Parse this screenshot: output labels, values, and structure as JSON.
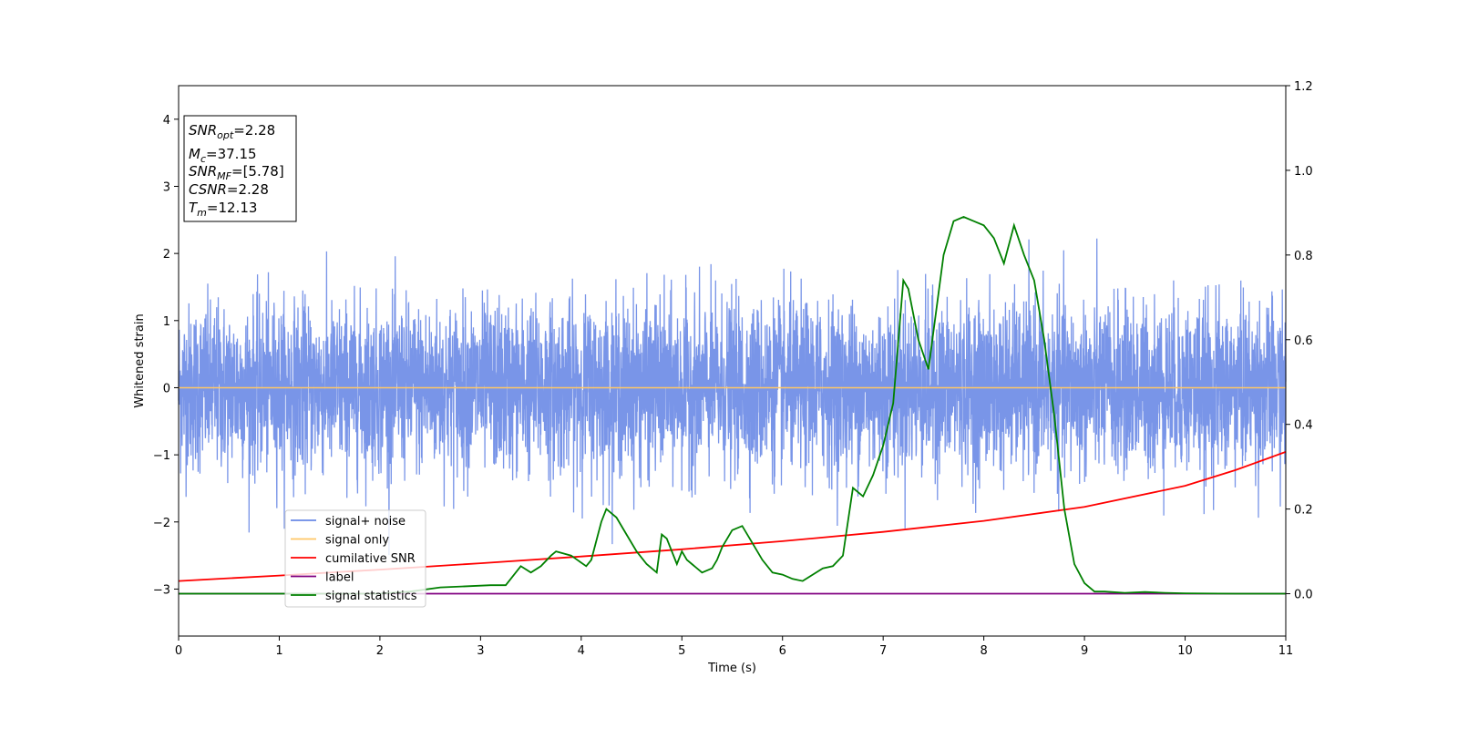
{
  "chart_data": {
    "type": "line",
    "xlabel": "Time (s)",
    "ylabel_left": "Whitened strain",
    "ylabel_right": "",
    "xlim": [
      0,
      11
    ],
    "ylim_left": [
      -3.7,
      4.5
    ],
    "ylim_right": [
      -0.1,
      1.2
    ],
    "x_ticks": [
      0,
      1,
      2,
      3,
      4,
      5,
      6,
      7,
      8,
      9,
      10,
      11
    ],
    "x_tick_labels": [
      "0",
      "1",
      "2",
      "3",
      "4",
      "5",
      "6",
      "7",
      "8",
      "9",
      "10",
      "11"
    ],
    "y_ticks_left": [
      -3,
      -2,
      -1,
      0,
      1,
      2,
      3,
      4
    ],
    "y_tick_labels_left": [
      "−3",
      "−2",
      "−1",
      "0",
      "1",
      "2",
      "3",
      "4"
    ],
    "y_ticks_right": [
      0.0,
      0.2,
      0.4,
      0.6,
      0.8,
      1.0,
      1.2
    ],
    "y_tick_labels_right": [
      "0.0",
      "0.2",
      "0.4",
      "0.6",
      "0.8",
      "1.0",
      "1.2"
    ],
    "grid": false,
    "legend_placement": "lower-left",
    "legend": [
      {
        "label": "signal+ noise",
        "color": "#6a8ae6"
      },
      {
        "label": "signal only",
        "color": "#ffc766"
      },
      {
        "label": "cumilative SNR",
        "color": "#ff0000"
      },
      {
        "label": "label",
        "color": "#800080"
      },
      {
        "label": "signal statistics",
        "color": "#008000"
      }
    ],
    "annotation": {
      "lines": [
        {
          "name": "SNR",
          "sub": "opt",
          "value": "=2.28"
        },
        {
          "name": "M",
          "sub": "c",
          "value": "=37.15"
        },
        {
          "name": "SNR",
          "sub": "MF",
          "value": "=[5.78]"
        },
        {
          "name": "CSNR",
          "sub": "",
          "value": "=2.28"
        },
        {
          "name": "T",
          "sub": "m",
          "value": "=12.13"
        }
      ]
    },
    "series": [
      {
        "name": "signal+ noise",
        "axis": "left",
        "color": "#6a8ae6",
        "style": "dense noise approx. within ±1.6, spikes to ±3",
        "envelope": [
          -1.6,
          1.6
        ]
      },
      {
        "name": "signal only",
        "axis": "left",
        "color": "#ffc766",
        "x": [
          0,
          11
        ],
        "y": [
          0,
          0
        ]
      },
      {
        "name": "cumilative SNR",
        "axis": "right",
        "color": "#ff0000",
        "x": [
          0,
          1,
          2,
          3,
          4,
          5,
          6,
          7,
          8,
          9,
          10,
          10.5,
          11
        ],
        "y": [
          0.03,
          0.043,
          0.057,
          0.072,
          0.088,
          0.105,
          0.124,
          0.146,
          0.172,
          0.205,
          0.255,
          0.292,
          0.335
        ]
      },
      {
        "name": "label",
        "axis": "right",
        "color": "#800080",
        "x": [
          0,
          11
        ],
        "y": [
          0,
          0
        ]
      },
      {
        "name": "signal statistics",
        "axis": "right",
        "color": "#008000",
        "x": [
          0,
          0.5,
          1,
          1.5,
          2,
          2.3,
          2.6,
          2.9,
          3.1,
          3.25,
          3.4,
          3.5,
          3.6,
          3.7,
          3.75,
          3.9,
          4.05,
          4.1,
          4.2,
          4.25,
          4.35,
          4.45,
          4.55,
          4.65,
          4.75,
          4.8,
          4.85,
          4.95,
          5.0,
          5.05,
          5.1,
          5.2,
          5.3,
          5.35,
          5.4,
          5.5,
          5.6,
          5.7,
          5.8,
          5.9,
          6.0,
          6.1,
          6.2,
          6.3,
          6.4,
          6.5,
          6.6,
          6.7,
          6.8,
          6.9,
          7.0,
          7.1,
          7.2,
          7.25,
          7.35,
          7.45,
          7.5,
          7.6,
          7.7,
          7.8,
          7.9,
          8.0,
          8.1,
          8.2,
          8.3,
          8.4,
          8.5,
          8.6,
          8.7,
          8.8,
          8.9,
          9.0,
          9.1,
          9.2,
          9.4,
          9.6,
          9.8,
          10.0,
          10.5,
          11.0
        ],
        "y": [
          0.0,
          0.0,
          0.0,
          0.0,
          0.0,
          0.005,
          0.015,
          0.018,
          0.02,
          0.02,
          0.065,
          0.05,
          0.065,
          0.09,
          0.1,
          0.09,
          0.065,
          0.08,
          0.17,
          0.2,
          0.18,
          0.14,
          0.1,
          0.07,
          0.05,
          0.14,
          0.13,
          0.07,
          0.1,
          0.08,
          0.07,
          0.05,
          0.06,
          0.08,
          0.11,
          0.15,
          0.16,
          0.12,
          0.08,
          0.05,
          0.045,
          0.035,
          0.03,
          0.045,
          0.06,
          0.065,
          0.09,
          0.25,
          0.23,
          0.28,
          0.35,
          0.45,
          0.74,
          0.72,
          0.6,
          0.53,
          0.62,
          0.8,
          0.88,
          0.89,
          0.88,
          0.87,
          0.84,
          0.78,
          0.87,
          0.8,
          0.74,
          0.6,
          0.42,
          0.2,
          0.07,
          0.025,
          0.005,
          0.005,
          0.002,
          0.004,
          0.002,
          0.001,
          0.0,
          0.0
        ]
      }
    ]
  }
}
